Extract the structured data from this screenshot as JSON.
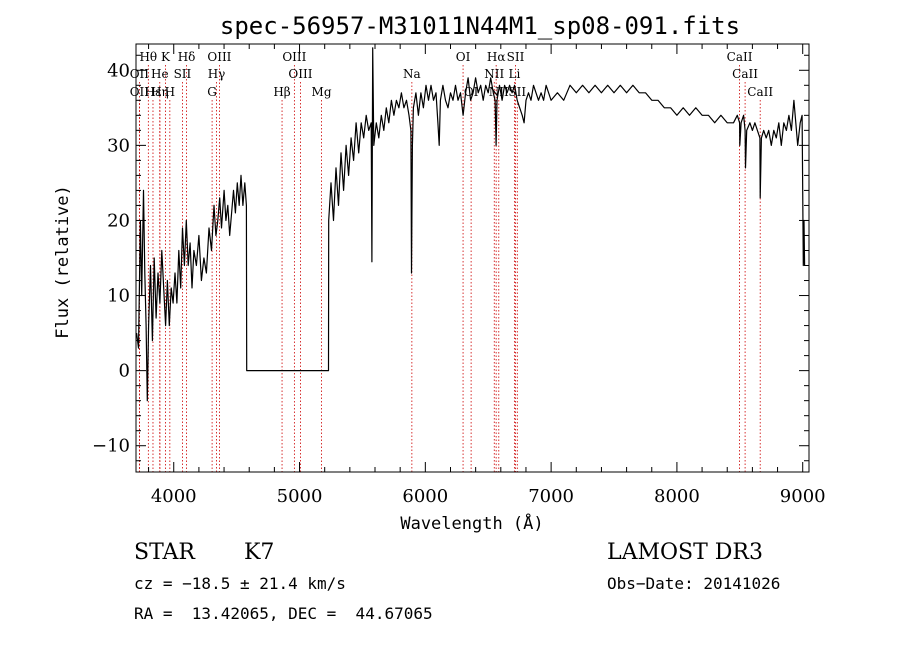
{
  "chart_data": {
    "type": "line",
    "title": "spec-56957-M31011N44M1_sp08-091.fits",
    "xlabel": "Wavelength (Å)",
    "ylabel": "Flux (relative)",
    "xlim": [
      3700,
      9050
    ],
    "ylim": [
      -13.5,
      43.5
    ],
    "xticks": [
      4000,
      5000,
      6000,
      7000,
      8000,
      9000
    ],
    "yticks": [
      -10,
      0,
      10,
      20,
      30,
      40
    ],
    "x_minor_step": 200,
    "y_minor_step": 2,
    "grid": false,
    "line_color": "#000000",
    "marker_color": "#cc0000",
    "series": [
      {
        "name": "flux",
        "points": [
          [
            3705,
            5
          ],
          [
            3720,
            3
          ],
          [
            3735,
            20
          ],
          [
            3745,
            10
          ],
          [
            3760,
            24
          ],
          [
            3770,
            13
          ],
          [
            3780,
            6
          ],
          [
            3790,
            -4
          ],
          [
            3800,
            6
          ],
          [
            3815,
            14
          ],
          [
            3830,
            4
          ],
          [
            3845,
            15
          ],
          [
            3860,
            7
          ],
          [
            3875,
            13
          ],
          [
            3890,
            9
          ],
          [
            3905,
            16
          ],
          [
            3920,
            11
          ],
          [
            3935,
            6
          ],
          [
            3950,
            12
          ],
          [
            3965,
            6
          ],
          [
            3980,
            11
          ],
          [
            3995,
            9
          ],
          [
            4010,
            13
          ],
          [
            4025,
            9
          ],
          [
            4040,
            16
          ],
          [
            4055,
            11
          ],
          [
            4070,
            19
          ],
          [
            4085,
            14
          ],
          [
            4100,
            20
          ],
          [
            4115,
            14
          ],
          [
            4130,
            17
          ],
          [
            4145,
            11
          ],
          [
            4160,
            16
          ],
          [
            4180,
            14
          ],
          [
            4200,
            18
          ],
          [
            4220,
            12
          ],
          [
            4240,
            15
          ],
          [
            4260,
            13
          ],
          [
            4280,
            19
          ],
          [
            4300,
            16
          ],
          [
            4320,
            22
          ],
          [
            4335,
            18
          ],
          [
            4350,
            20
          ],
          [
            4365,
            23
          ],
          [
            4380,
            19
          ],
          [
            4400,
            24
          ],
          [
            4415,
            20
          ],
          [
            4430,
            22
          ],
          [
            4445,
            18
          ],
          [
            4460,
            21
          ],
          [
            4475,
            24
          ],
          [
            4490,
            21
          ],
          [
            4505,
            25
          ],
          [
            4520,
            22
          ],
          [
            4535,
            26
          ],
          [
            4550,
            22
          ],
          [
            4565,
            25
          ],
          [
            4578,
            22
          ],
          [
            4580,
            0
          ],
          [
            5230,
            0
          ],
          [
            5232,
            20
          ],
          [
            5250,
            25
          ],
          [
            5270,
            20
          ],
          [
            5290,
            27
          ],
          [
            5310,
            22
          ],
          [
            5330,
            29
          ],
          [
            5350,
            24
          ],
          [
            5370,
            30
          ],
          [
            5390,
            26
          ],
          [
            5410,
            31
          ],
          [
            5430,
            28
          ],
          [
            5450,
            33
          ],
          [
            5470,
            29
          ],
          [
            5490,
            33
          ],
          [
            5510,
            31
          ],
          [
            5530,
            34
          ],
          [
            5550,
            32
          ],
          [
            5570,
            33
          ],
          [
            5575,
            14.5
          ],
          [
            5582,
            43
          ],
          [
            5590,
            30
          ],
          [
            5610,
            33
          ],
          [
            5630,
            31
          ],
          [
            5650,
            34
          ],
          [
            5670,
            32
          ],
          [
            5690,
            35
          ],
          [
            5710,
            33
          ],
          [
            5730,
            36
          ],
          [
            5750,
            34
          ],
          [
            5770,
            36
          ],
          [
            5790,
            35
          ],
          [
            5810,
            37
          ],
          [
            5830,
            35
          ],
          [
            5850,
            36
          ],
          [
            5870,
            34
          ],
          [
            5885,
            32
          ],
          [
            5890,
            13
          ],
          [
            5897,
            30
          ],
          [
            5905,
            35
          ],
          [
            5925,
            37
          ],
          [
            5945,
            34
          ],
          [
            5965,
            37
          ],
          [
            5985,
            35
          ],
          [
            6005,
            38
          ],
          [
            6025,
            36
          ],
          [
            6045,
            38
          ],
          [
            6065,
            36
          ],
          [
            6085,
            37
          ],
          [
            6100,
            33
          ],
          [
            6110,
            30
          ],
          [
            6120,
            36
          ],
          [
            6140,
            38
          ],
          [
            6160,
            36
          ],
          [
            6180,
            35
          ],
          [
            6200,
            37
          ],
          [
            6220,
            36
          ],
          [
            6240,
            38
          ],
          [
            6260,
            36
          ],
          [
            6280,
            37
          ],
          [
            6300,
            34
          ],
          [
            6320,
            37
          ],
          [
            6340,
            39
          ],
          [
            6360,
            36
          ],
          [
            6380,
            37
          ],
          [
            6400,
            39
          ],
          [
            6420,
            37
          ],
          [
            6440,
            38
          ],
          [
            6460,
            36
          ],
          [
            6480,
            38
          ],
          [
            6500,
            37
          ],
          [
            6520,
            39
          ],
          [
            6540,
            37
          ],
          [
            6555,
            36
          ],
          [
            6563,
            30
          ],
          [
            6570,
            36
          ],
          [
            6590,
            38
          ],
          [
            6610,
            36
          ],
          [
            6630,
            38
          ],
          [
            6650,
            37
          ],
          [
            6670,
            38
          ],
          [
            6690,
            37
          ],
          [
            6710,
            38
          ],
          [
            6730,
            36
          ],
          [
            6750,
            35
          ],
          [
            6770,
            34
          ],
          [
            6785,
            33
          ],
          [
            6800,
            36
          ],
          [
            6820,
            37
          ],
          [
            6840,
            36
          ],
          [
            6860,
            38
          ],
          [
            6880,
            37
          ],
          [
            6900,
            36
          ],
          [
            6920,
            37
          ],
          [
            6940,
            36
          ],
          [
            6960,
            38
          ],
          [
            6980,
            37
          ],
          [
            7000,
            36
          ],
          [
            7050,
            37
          ],
          [
            7100,
            36
          ],
          [
            7150,
            38
          ],
          [
            7200,
            37
          ],
          [
            7250,
            38
          ],
          [
            7300,
            37
          ],
          [
            7350,
            38
          ],
          [
            7400,
            37
          ],
          [
            7450,
            38
          ],
          [
            7500,
            37
          ],
          [
            7550,
            38
          ],
          [
            7600,
            37
          ],
          [
            7650,
            38
          ],
          [
            7700,
            37
          ],
          [
            7750,
            37
          ],
          [
            7800,
            36
          ],
          [
            7850,
            36
          ],
          [
            7900,
            35
          ],
          [
            7950,
            35
          ],
          [
            8000,
            34
          ],
          [
            8050,
            35
          ],
          [
            8100,
            34
          ],
          [
            8150,
            35
          ],
          [
            8200,
            34
          ],
          [
            8250,
            34
          ],
          [
            8300,
            33
          ],
          [
            8350,
            34
          ],
          [
            8400,
            33
          ],
          [
            8450,
            33
          ],
          [
            8480,
            34
          ],
          [
            8498,
            33
          ],
          [
            8500,
            30
          ],
          [
            8510,
            33
          ],
          [
            8530,
            34
          ],
          [
            8542,
            32
          ],
          [
            8545,
            27
          ],
          [
            8555,
            32
          ],
          [
            8580,
            33
          ],
          [
            8600,
            32
          ],
          [
            8620,
            33
          ],
          [
            8640,
            32
          ],
          [
            8660,
            31
          ],
          [
            8662,
            23
          ],
          [
            8672,
            31
          ],
          [
            8690,
            32
          ],
          [
            8710,
            31
          ],
          [
            8730,
            32
          ],
          [
            8750,
            30
          ],
          [
            8770,
            32
          ],
          [
            8790,
            31
          ],
          [
            8810,
            33
          ],
          [
            8830,
            30
          ],
          [
            8850,
            33
          ],
          [
            8870,
            32
          ],
          [
            8890,
            34
          ],
          [
            8910,
            32
          ],
          [
            8930,
            36
          ],
          [
            8945,
            33
          ],
          [
            8960,
            30
          ],
          [
            8980,
            33
          ],
          [
            8995,
            34
          ],
          [
            9005,
            14
          ],
          [
            9010,
            20
          ],
          [
            9015,
            14
          ]
        ]
      }
    ],
    "lines": [
      {
        "label": "Hθ",
        "wavelength": 3798,
        "row": 1
      },
      {
        "label": "OII",
        "wavelength": 3727,
        "row": 2
      },
      {
        "label": "OII",
        "wavelength": 3727,
        "row": 3
      },
      {
        "label": "Hε",
        "wavelength": 3835,
        "row": 3
      },
      {
        "label": "K",
        "wavelength": 3934,
        "row": 1
      },
      {
        "label": "He",
        "wavelength": 3889,
        "row": 2
      },
      {
        "label": "Hη",
        "wavelength": 3890,
        "row": 3
      },
      {
        "label": "SII",
        "wavelength": 4069,
        "row": 2
      },
      {
        "label": "H",
        "wavelength": 3969,
        "row": 3
      },
      {
        "label": "Hδ",
        "wavelength": 4102,
        "row": 1
      },
      {
        "label": "OIII",
        "wavelength": 4363,
        "row": 1
      },
      {
        "label": "Hγ",
        "wavelength": 4340,
        "row": 2
      },
      {
        "label": "G",
        "wavelength": 4305,
        "row": 3
      },
      {
        "label": "OIII",
        "wavelength": 4959,
        "row": 1
      },
      {
        "label": "OIII",
        "wavelength": 5007,
        "row": 2
      },
      {
        "label": "Hβ",
        "wavelength": 4861,
        "row": 3
      },
      {
        "label": "Mg",
        "wavelength": 5175,
        "row": 3
      },
      {
        "label": "Na",
        "wavelength": 5893,
        "row": 2
      },
      {
        "label": "OI",
        "wavelength": 6300,
        "row": 1
      },
      {
        "label": "OI",
        "wavelength": 6364,
        "row": 3
      },
      {
        "label": "Hα",
        "wavelength": 6563,
        "row": 1
      },
      {
        "label": "SII",
        "wavelength": 6717,
        "row": 1
      },
      {
        "label": "NII",
        "wavelength": 6548,
        "row": 2
      },
      {
        "label": "Li",
        "wavelength": 6708,
        "row": 2
      },
      {
        "label": "NII",
        "wavelength": 6584,
        "row": 3
      },
      {
        "label": "SII",
        "wavelength": 6731,
        "row": 3
      },
      {
        "label": "CaII",
        "wavelength": 8498,
        "row": 1
      },
      {
        "label": "CaII",
        "wavelength": 8542,
        "row": 2
      },
      {
        "label": "CaII",
        "wavelength": 8662,
        "row": 3
      }
    ]
  },
  "info": {
    "object_class": "STAR",
    "subclass": "K7",
    "cz": "cz = −18.5 ± 21.4 km/s",
    "radec": "RA =  13.42065, DEC =  44.67065",
    "survey": "LAMOST DR3",
    "obs_date": "Obs−Date: 20141026"
  }
}
